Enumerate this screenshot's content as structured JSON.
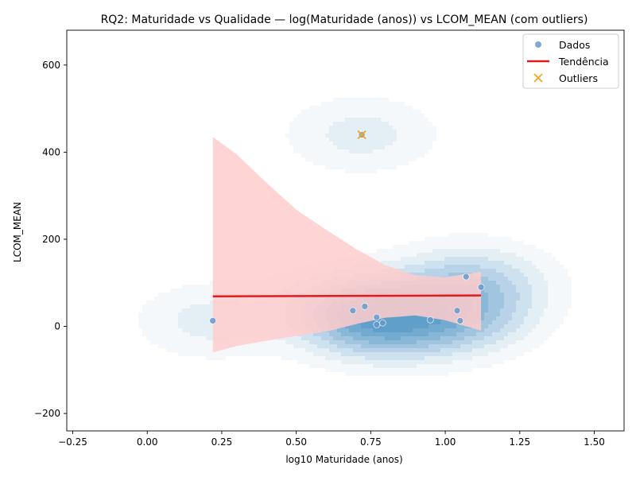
{
  "chart_data": {
    "type": "scatter",
    "title": "RQ2: Maturidade vs Qualidade — log(Maturidade (anos)) vs LCOM_MEAN (com outliers)",
    "xlabel": "log10 Maturidade (anos)",
    "ylabel": "LCOM_MEAN",
    "xlim": [
      -0.27,
      1.6
    ],
    "ylim": [
      -240,
      680
    ],
    "x_ticks": [
      -0.25,
      0.0,
      0.25,
      0.5,
      0.75,
      1.0,
      1.25,
      1.5
    ],
    "x_tick_labels": [
      "−0.25",
      "0.00",
      "0.25",
      "0.50",
      "0.75",
      "1.00",
      "1.25",
      "1.50"
    ],
    "y_ticks": [
      -200,
      0,
      200,
      400,
      600
    ],
    "y_tick_labels": [
      "−200",
      "0",
      "200",
      "400",
      "600"
    ],
    "grid": false,
    "legend_position": "top-right",
    "colors": {
      "points": "#6699cc",
      "trend": "#e31a1c",
      "ci_band": "#ffcccc",
      "outliers": "#f5a623",
      "kde": "#1f77b4"
    },
    "series": [
      {
        "name": "Dados",
        "kind": "scatter",
        "points": [
          {
            "x": 0.22,
            "y": 13
          },
          {
            "x": 0.69,
            "y": 36
          },
          {
            "x": 0.73,
            "y": 46
          },
          {
            "x": 0.72,
            "y": 440
          },
          {
            "x": 0.77,
            "y": 21
          },
          {
            "x": 0.77,
            "y": 4
          },
          {
            "x": 0.79,
            "y": 8
          },
          {
            "x": 0.95,
            "y": 15
          },
          {
            "x": 1.04,
            "y": 36
          },
          {
            "x": 1.05,
            "y": 13
          },
          {
            "x": 1.07,
            "y": 114
          },
          {
            "x": 1.12,
            "y": 90
          }
        ]
      },
      {
        "name": "Tendência",
        "kind": "line",
        "points": [
          {
            "x": 0.22,
            "y": 69
          },
          {
            "x": 1.12,
            "y": 71
          }
        ],
        "ci_upper": [
          {
            "x": 0.22,
            "y": 435
          },
          {
            "x": 0.3,
            "y": 395
          },
          {
            "x": 0.4,
            "y": 330
          },
          {
            "x": 0.5,
            "y": 268
          },
          {
            "x": 0.6,
            "y": 222
          },
          {
            "x": 0.7,
            "y": 178
          },
          {
            "x": 0.8,
            "y": 140
          },
          {
            "x": 0.9,
            "y": 117
          },
          {
            "x": 1.0,
            "y": 113
          },
          {
            "x": 1.12,
            "y": 125
          }
        ],
        "ci_lower": [
          {
            "x": 1.12,
            "y": -10
          },
          {
            "x": 1.0,
            "y": 14
          },
          {
            "x": 0.9,
            "y": 25
          },
          {
            "x": 0.8,
            "y": 20
          },
          {
            "x": 0.7,
            "y": 5
          },
          {
            "x": 0.6,
            "y": -12
          },
          {
            "x": 0.5,
            "y": -22
          },
          {
            "x": 0.4,
            "y": -33
          },
          {
            "x": 0.3,
            "y": -45
          },
          {
            "x": 0.22,
            "y": -60
          }
        ]
      },
      {
        "name": "Outliers",
        "kind": "marker-x",
        "points": [
          {
            "x": 0.72,
            "y": 440
          }
        ]
      }
    ]
  }
}
